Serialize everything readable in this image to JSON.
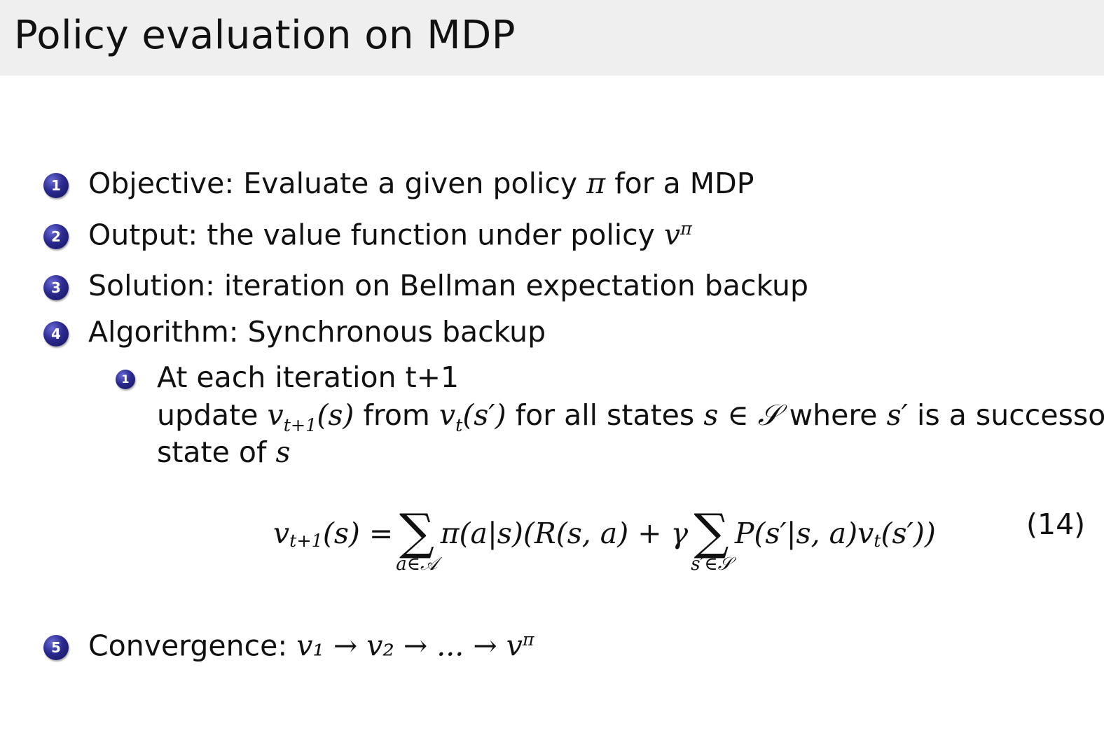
{
  "title": "Policy evaluation on MDP",
  "items": [
    {
      "num": "1",
      "label": "Objective:",
      "text": "Evaluate a given policy",
      "math": "π",
      "text2": "for a MDP"
    },
    {
      "num": "2",
      "label": "Output:",
      "text": "the value function under policy",
      "math": "v",
      "sup": "π"
    },
    {
      "num": "3",
      "label": "Solution:",
      "text": "iteration on Bellman expectation backup"
    },
    {
      "num": "4",
      "label": "Algorithm:",
      "text": "Synchronous backup"
    }
  ],
  "subitem": {
    "num": "1",
    "line1": "At each iteration t+1",
    "line2_a": "update",
    "v1": "v",
    "v1_sub": "t+1",
    "arg1": "(s)",
    "from": "from",
    "v2": "v",
    "v2_sub": "t",
    "arg2": "(s′)",
    "forall": "for all states",
    "s_in_S": "s ∈ 𝒮",
    "where": "where",
    "sprime": "s′",
    "succ": "is a successor",
    "line3_a": "state of",
    "line3_s": "s"
  },
  "equation": {
    "lhs": "v",
    "lhs_sub": "t+1",
    "lhs_arg": "(s) =",
    "sum1": "∑",
    "sum1_lim": "a∈𝒜",
    "mid": "π(a|s)(R(s, a) + γ",
    "sum2": "∑",
    "sum2_lim": "s′∈𝒮",
    "rhs": "P(s′|s, a)v",
    "rhs_sub": "t",
    "rhs_end": "(s′))",
    "number": "(14)"
  },
  "convergence": {
    "num": "5",
    "label": "Convergence:",
    "math": "v₁ → v₂ → ... → v",
    "sup": "π"
  },
  "colors": {
    "title_bar": "#efefef",
    "bullet": "#2a2a90"
  }
}
